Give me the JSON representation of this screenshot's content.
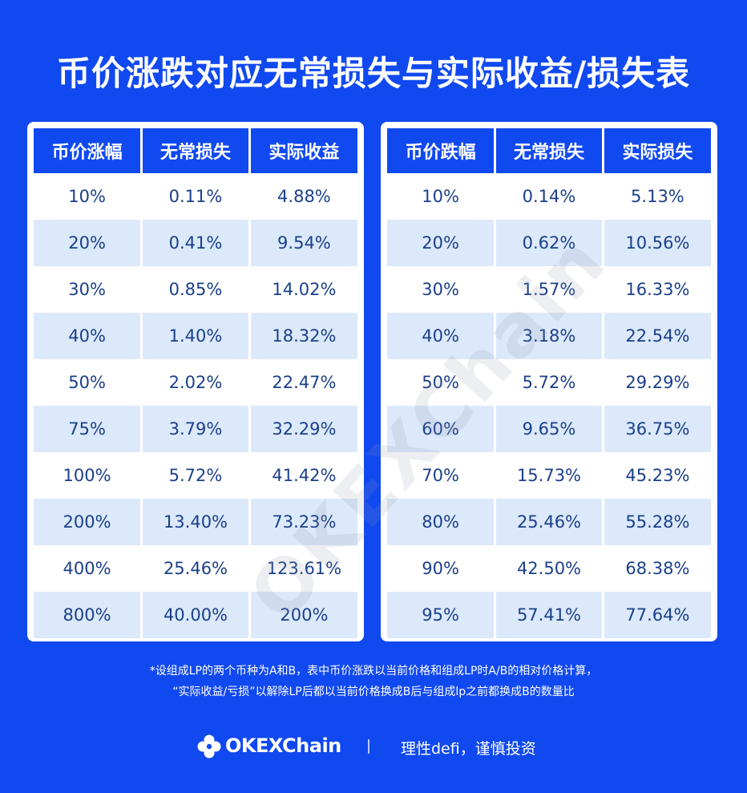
{
  "title": "币价涨跌对应无常损失与实际收益/损失表",
  "rise_table": {
    "headers": [
      "币价涨幅",
      "无常损失",
      "实际收益"
    ],
    "rows": [
      [
        "10%",
        "0.11%",
        "4.88%"
      ],
      [
        "20%",
        "0.41%",
        "9.54%"
      ],
      [
        "30%",
        "0.85%",
        "14.02%"
      ],
      [
        "40%",
        "1.40%",
        "18.32%"
      ],
      [
        "50%",
        "2.02%",
        "22.47%"
      ],
      [
        "75%",
        "3.79%",
        "32.29%"
      ],
      [
        "100%",
        "5.72%",
        "41.42%"
      ],
      [
        "200%",
        "13.40%",
        "73.23%"
      ],
      [
        "400%",
        "25.46%",
        "123.61%"
      ],
      [
        "800%",
        "40.00%",
        "200%"
      ]
    ]
  },
  "fall_table": {
    "headers": [
      "币价跌幅",
      "无常损失",
      "实际损失"
    ],
    "rows": [
      [
        "10%",
        "0.14%",
        "5.13%"
      ],
      [
        "20%",
        "0.62%",
        "10.56%"
      ],
      [
        "30%",
        "1.57%",
        "16.33%"
      ],
      [
        "40%",
        "3.18%",
        "22.54%"
      ],
      [
        "50%",
        "5.72%",
        "29.29%"
      ],
      [
        "60%",
        "9.65%",
        "36.75%"
      ],
      [
        "70%",
        "15.73%",
        "45.23%"
      ],
      [
        "80%",
        "25.46%",
        "55.28%"
      ],
      [
        "90%",
        "42.50%",
        "68.38%"
      ],
      [
        "95%",
        "57.41%",
        "77.64%"
      ]
    ]
  },
  "watermark": "OKEXChain",
  "notes": {
    "line1": "*设组成LP的两个币种为A和B，表中币价涨跌以当前价格和组成LP时A/B的相对价格计算，",
    "line2": "“实际收益/亏损”以解除LP后都以当前价格换成B后与组成lp之前都换成B的数量比"
  },
  "footer": {
    "brand": "OKEXChain",
    "slogan": "理性defi，谨慎投资",
    "logo_icon": "okexchain-logo-icon"
  },
  "colors": {
    "background": "#1149f0",
    "header": "#1149f0",
    "alt_row": "#dbe9fb",
    "cell_text": "#1b3f8a"
  }
}
